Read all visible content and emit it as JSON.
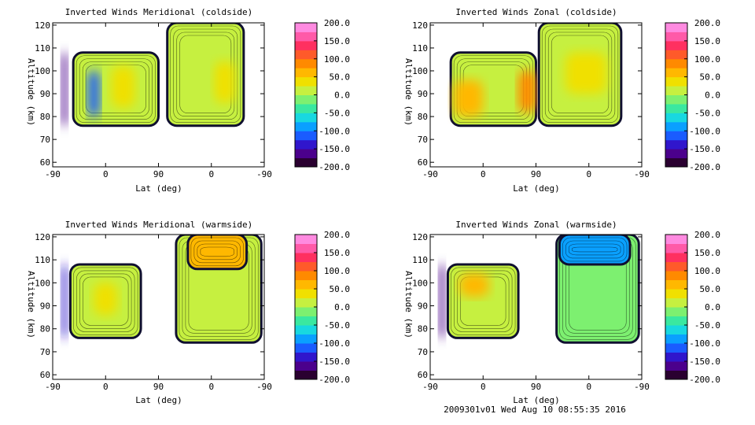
{
  "colors": {
    "background": "#ffffff",
    "axes": "#000000",
    "contour_line": "#000000"
  },
  "colorbar": {
    "ticks": [
      "200.0",
      "150.0",
      "100.0",
      "50.0",
      "0.0",
      "-50.0",
      "-100.0",
      "-150.0",
      "-200.0"
    ],
    "range": [
      -200,
      200
    ],
    "palette": [
      "#2a0030",
      "#4b008c",
      "#3016cc",
      "#1a5cff",
      "#0aa0ff",
      "#18d8e0",
      "#3ae8a0",
      "#7df070",
      "#c6f040",
      "#f0e000",
      "#ffb800",
      "#ff8a00",
      "#ff5a2a",
      "#ff3060",
      "#ff5aa8",
      "#ff8ae0"
    ]
  },
  "footer": "2009301v01 Wed Aug 10 08:55:35 2016",
  "chart_data": [
    {
      "type": "heatmap",
      "title": "Inverted Winds Meridional (coldside)",
      "xlabel": "Lat (deg)",
      "ylabel": "Altitude (km)",
      "x_ticks": [
        "-90",
        "0",
        "90",
        "0",
        "-90"
      ],
      "y_ticks": [
        "60",
        "70",
        "80",
        "90",
        "100",
        "110",
        "120"
      ],
      "xlim": [
        0,
        360
      ],
      "ylim": [
        58,
        121
      ],
      "z_range": [
        -200,
        200
      ],
      "regions": [
        {
          "x": [
            15,
            25
          ],
          "y": [
            76,
            108
          ],
          "fill": -170
        },
        {
          "x": [
            35,
            180
          ],
          "y": [
            76,
            108
          ],
          "fill": 5
        },
        {
          "x": [
            60,
            80
          ],
          "y": [
            80,
            100
          ],
          "fill": -120
        },
        {
          "x": [
            100,
            140
          ],
          "y": [
            84,
            102
          ],
          "fill": 30
        },
        {
          "x": [
            195,
            325
          ],
          "y": [
            76,
            121
          ],
          "fill": 0
        },
        {
          "x": [
            275,
            310
          ],
          "y": [
            86,
            104
          ],
          "fill": 40
        }
      ]
    },
    {
      "type": "heatmap",
      "title": "Inverted Winds Zonal (coldside)",
      "xlabel": "Lat (deg)",
      "ylabel": "Altitude (km)",
      "x_ticks": [
        "-90",
        "0",
        "90",
        "0",
        "-90"
      ],
      "y_ticks": [
        "60",
        "70",
        "80",
        "90",
        "100",
        "110",
        "120"
      ],
      "xlim": [
        0,
        360
      ],
      "ylim": [
        58,
        121
      ],
      "z_range": [
        -200,
        200
      ],
      "regions": [
        {
          "x": [
            35,
            180
          ],
          "y": [
            76,
            108
          ],
          "fill": 10
        },
        {
          "x": [
            40,
            90
          ],
          "y": [
            80,
            96
          ],
          "fill": 60
        },
        {
          "x": [
            150,
            180
          ],
          "y": [
            82,
            100
          ],
          "fill": 90
        },
        {
          "x": [
            185,
            325
          ],
          "y": [
            76,
            121
          ],
          "fill": 0
        },
        {
          "x": [
            230,
            300
          ],
          "y": [
            90,
            108
          ],
          "fill": 30
        }
      ]
    },
    {
      "type": "heatmap",
      "title": "Inverted Winds Meridional (warmside)",
      "xlabel": "Lat (deg)",
      "ylabel": "Altitude (km)",
      "x_ticks": [
        "-90",
        "0",
        "90",
        "0",
        "-90"
      ],
      "y_ticks": [
        "60",
        "70",
        "80",
        "90",
        "100",
        "110",
        "120"
      ],
      "xlim": [
        0,
        360
      ],
      "ylim": [
        58,
        121
      ],
      "z_range": [
        -200,
        200
      ],
      "regions": [
        {
          "x": [
            15,
            25
          ],
          "y": [
            76,
            108
          ],
          "fill": -150
        },
        {
          "x": [
            30,
            150
          ],
          "y": [
            76,
            108
          ],
          "fill": 5
        },
        {
          "x": [
            70,
            110
          ],
          "y": [
            86,
            100
          ],
          "fill": 40
        },
        {
          "x": [
            210,
            355
          ],
          "y": [
            74,
            121
          ],
          "fill": 20
        },
        {
          "x": [
            230,
            330
          ],
          "y": [
            106,
            121
          ],
          "fill": 70
        }
      ]
    },
    {
      "type": "heatmap",
      "title": "Inverted Winds Zonal (warmside)",
      "xlabel": "Lat (deg)",
      "ylabel": "Altitude (km)",
      "x_ticks": [
        "-90",
        "0",
        "90",
        "0",
        "-90"
      ],
      "y_ticks": [
        "60",
        "70",
        "80",
        "90",
        "100",
        "110",
        "120"
      ],
      "xlim": [
        0,
        360
      ],
      "ylim": [
        58,
        121
      ],
      "z_range": [
        -200,
        200
      ],
      "regions": [
        {
          "x": [
            15,
            25
          ],
          "y": [
            76,
            108
          ],
          "fill": -160
        },
        {
          "x": [
            30,
            150
          ],
          "y": [
            76,
            108
          ],
          "fill": 20
        },
        {
          "x": [
            50,
            100
          ],
          "y": [
            94,
            104
          ],
          "fill": 60
        },
        {
          "x": [
            215,
            355
          ],
          "y": [
            74,
            121
          ],
          "fill": -10
        },
        {
          "x": [
            220,
            340
          ],
          "y": [
            108,
            121
          ],
          "fill": -100
        }
      ]
    }
  ]
}
